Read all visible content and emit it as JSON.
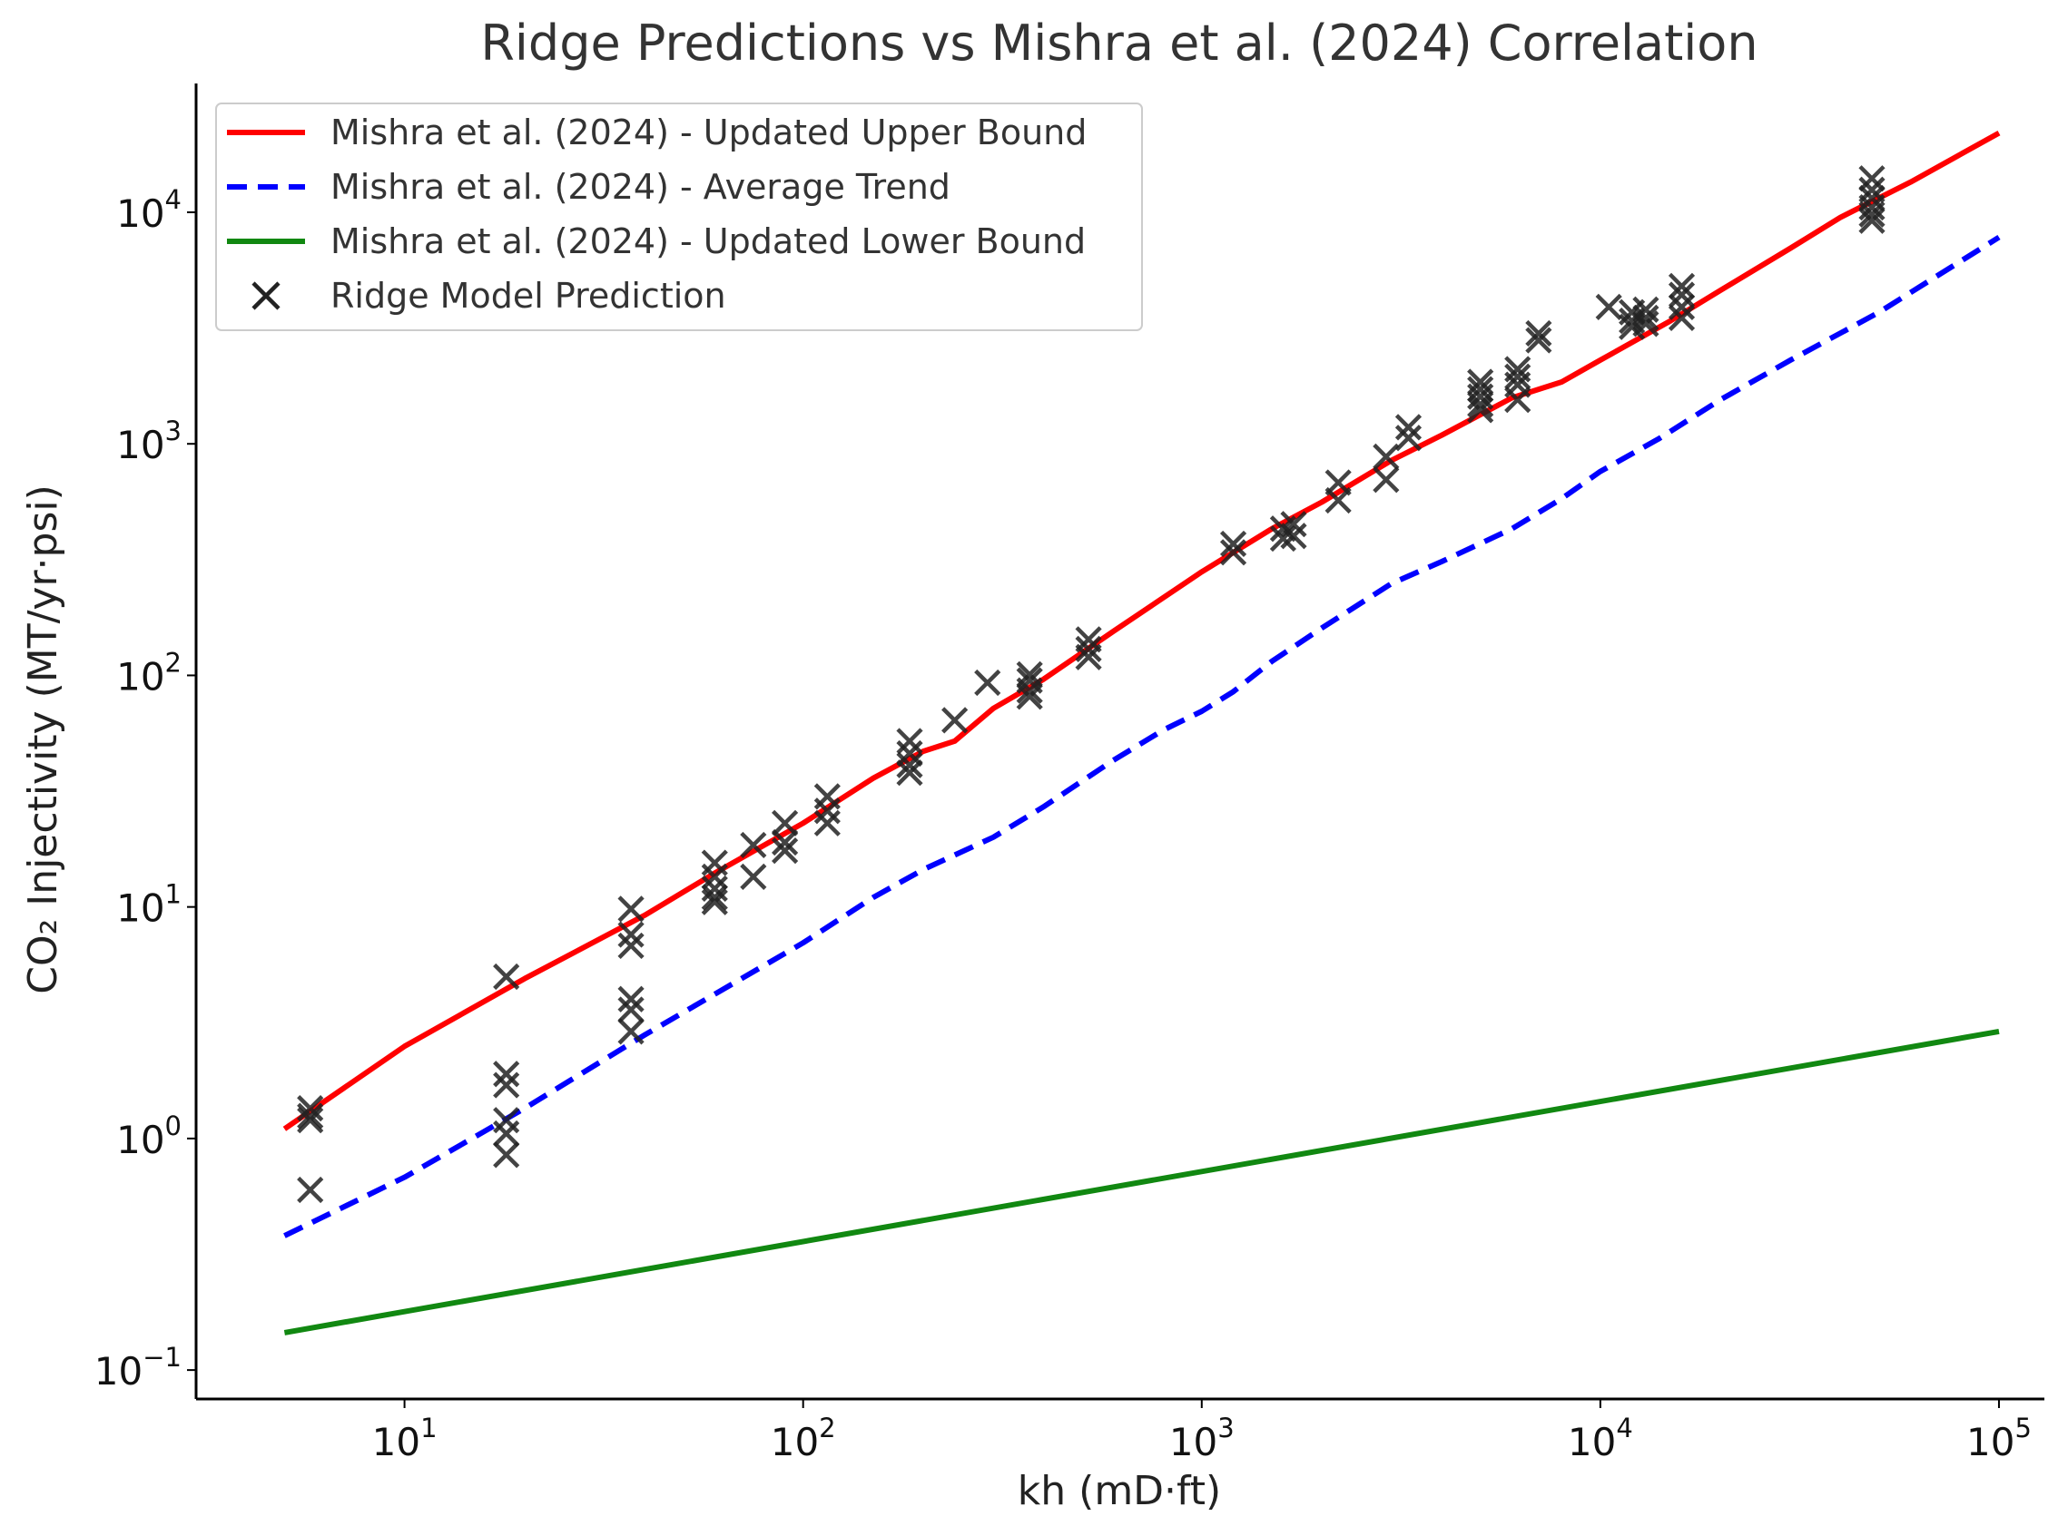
{
  "chart_data": {
    "type": "line",
    "title": "Ridge Predictions vs Mishra et al. (2024) Correlation",
    "xlabel": "kh (mD·ft)",
    "ylabel": "CO₂ Injectivity (MT/yr·psi)",
    "xscale": "log",
    "yscale": "log",
    "xlim": [
      3,
      130000
    ],
    "ylim": [
      0.075,
      36000
    ],
    "x_ticks": [
      {
        "value": 10,
        "base": "10",
        "exp": "1"
      },
      {
        "value": 100,
        "base": "10",
        "exp": "2"
      },
      {
        "value": 1000,
        "base": "10",
        "exp": "3"
      },
      {
        "value": 10000,
        "base": "10",
        "exp": "4"
      },
      {
        "value": 100000,
        "base": "10",
        "exp": "5"
      }
    ],
    "y_ticks": [
      {
        "value": 0.1,
        "base": "10",
        "exp": "−1"
      },
      {
        "value": 1,
        "base": "10",
        "exp": "0"
      },
      {
        "value": 10,
        "base": "10",
        "exp": "1"
      },
      {
        "value": 100,
        "base": "10",
        "exp": "2"
      },
      {
        "value": 1000,
        "base": "10",
        "exp": "3"
      },
      {
        "value": 10000,
        "base": "10",
        "exp": "4"
      }
    ],
    "legend_position": "upper-left",
    "series": [
      {
        "name": "Mishra et al. (2024) - Updated Upper Bound",
        "kind": "line",
        "color": "#ff0000",
        "dash": "solid",
        "x": [
          5,
          10,
          20,
          40,
          60,
          100,
          150,
          200,
          240,
          300,
          400,
          600,
          1000,
          1500,
          2000,
          3000,
          4000,
          6000,
          8000,
          10000,
          15000,
          20000,
          30000,
          40000,
          60000,
          100000
        ],
        "y": [
          1.1,
          2.5,
          4.9,
          9.2,
          14,
          23,
          36,
          47,
          52,
          72,
          96,
          155,
          280,
          430,
          560,
          850,
          1090,
          1580,
          1850,
          2300,
          3400,
          4600,
          7000,
          9500,
          13500,
          22000
        ]
      },
      {
        "name": "Mishra et al. (2024) - Average Trend",
        "kind": "line",
        "color": "#0000ff",
        "dash": "dashed",
        "x": [
          5,
          10,
          20,
          40,
          60,
          100,
          150,
          200,
          300,
          400,
          600,
          800,
          1000,
          1200,
          1500,
          2000,
          3000,
          4000,
          6000,
          8000,
          10000,
          14000,
          20000,
          30000,
          50000,
          100000
        ],
        "y": [
          0.38,
          0.68,
          1.35,
          2.8,
          4.2,
          7.0,
          11,
          14.5,
          20,
          27,
          43,
          58,
          70,
          85,
          115,
          160,
          250,
          310,
          430,
          580,
          760,
          1050,
          1550,
          2300,
          3700,
          7800
        ]
      },
      {
        "name": "Mishra et al. (2024) - Updated Lower Bound",
        "kind": "line",
        "color": "#118811",
        "dash": "solid",
        "x": [
          5,
          100000
        ],
        "y": [
          0.145,
          2.9
        ]
      },
      {
        "name": "Ridge Model Prediction",
        "kind": "scatter",
        "color": "#222222",
        "marker": "x",
        "x": [
          5.8,
          5.8,
          5.8,
          5.8,
          18,
          18,
          18,
          18,
          18,
          18,
          37,
          37,
          37,
          37,
          37,
          37,
          60,
          60,
          60,
          60,
          60,
          75,
          75,
          90,
          90,
          90,
          115,
          115,
          115,
          185,
          185,
          185,
          185,
          240,
          290,
          370,
          370,
          370,
          370,
          520,
          520,
          520,
          1200,
          1200,
          1600,
          1600,
          1700,
          1700,
          2200,
          2200,
          2900,
          2900,
          3300,
          3300,
          5000,
          5000,
          5000,
          5000,
          5000,
          6200,
          6200,
          6200,
          6200,
          7000,
          7000,
          10500,
          12000,
          12000,
          12000,
          13000,
          13000,
          13000,
          16000,
          16000,
          16000,
          16000,
          48000,
          48000,
          48000,
          48000,
          48000,
          48000
        ],
        "y": [
          1.35,
          1.25,
          1.2,
          0.6,
          5.0,
          1.9,
          1.7,
          1.2,
          1.05,
          0.85,
          9.8,
          7.6,
          6.8,
          4.0,
          3.6,
          2.9,
          15.5,
          13.5,
          12.0,
          11.0,
          10.5,
          18.5,
          13.5,
          23,
          19,
          17.5,
          30,
          26,
          23,
          52,
          46,
          41,
          38,
          64,
          93,
          101,
          95,
          86,
          81,
          143,
          130,
          120,
          370,
          340,
          430,
          390,
          450,
          400,
          680,
          570,
          880,
          700,
          1180,
          1060,
          1850,
          1720,
          1600,
          1480,
          1400,
          2100,
          1950,
          1800,
          1550,
          3000,
          2800,
          3900,
          3700,
          3400,
          3200,
          3800,
          3500,
          3300,
          4800,
          4400,
          3900,
          3500,
          14000,
          12500,
          11500,
          10500,
          9800,
          9200
        ]
      }
    ]
  }
}
